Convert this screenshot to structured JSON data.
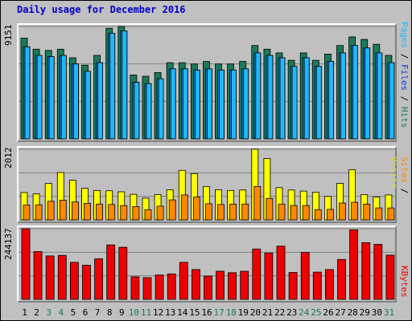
{
  "title": "Daily usage for December 2016",
  "colors": {
    "hits": "#1a7a5a",
    "files": "#0b8ae0",
    "pages": "#1fb8ff",
    "visits": "#ffff00",
    "sites": "#ff8800",
    "kbytes": "#ee0000",
    "weekend_label": "#1a7a5a",
    "weekday_label": "#000000"
  },
  "right_labels": {
    "pages": "Pages",
    "files": "Files",
    "hits": "Hits",
    "sites": "Sites",
    "visits": "Visits",
    "kbytes": "KBytes",
    "sep": " / "
  },
  "y_max_labels": {
    "hits": "9151",
    "visits": "2012",
    "kbytes": "244137"
  },
  "chart_data": {
    "type": "bar",
    "title": "Daily usage for December 2016",
    "categories": [
      "1",
      "2",
      "3",
      "4",
      "5",
      "6",
      "7",
      "8",
      "9",
      "10",
      "11",
      "12",
      "13",
      "14",
      "15",
      "16",
      "17",
      "18",
      "19",
      "20",
      "21",
      "22",
      "23",
      "24",
      "25",
      "26",
      "27",
      "28",
      "29",
      "30",
      "31"
    ],
    "weekend_days": [
      "3",
      "4",
      "10",
      "11",
      "17",
      "18",
      "24",
      "25",
      "31"
    ],
    "panels": [
      {
        "name": "hits_files_pages",
        "ymax": 9151,
        "series": [
          {
            "name": "Hits",
            "values": [
              8200,
              7300,
              7200,
              7300,
              6600,
              6000,
              6800,
              9000,
              9151,
              5200,
              5100,
              5400,
              6200,
              6200,
              6100,
              6300,
              6100,
              6100,
              6300,
              7600,
              7300,
              7000,
              6400,
              7000,
              6400,
              6900,
              7600,
              8300,
              8100,
              7700,
              6800
            ]
          },
          {
            "name": "Files",
            "values": [
              7500,
              6800,
              6700,
              6800,
              6100,
              5500,
              6200,
              8600,
              8800,
              4600,
              4500,
              4900,
              5700,
              5700,
              5600,
              5700,
              5600,
              5600,
              5700,
              7000,
              6800,
              6600,
              5900,
              6600,
              5900,
              6300,
              7000,
              7600,
              7400,
              7000,
              6200
            ]
          },
          {
            "name": "Pages",
            "values": [
              7500,
              6800,
              6700,
              6800,
              6100,
              5500,
              6200,
              8600,
              8800,
              4600,
              4500,
              4900,
              5700,
              5700,
              5600,
              5700,
              5600,
              5600,
              5700,
              7000,
              6800,
              6600,
              5900,
              6600,
              5900,
              6300,
              7000,
              7600,
              7400,
              7000,
              6200
            ]
          }
        ]
      },
      {
        "name": "visits_sites",
        "ymax": 2012,
        "series": [
          {
            "name": "Visits",
            "values": [
              780,
              740,
              1040,
              1350,
              1130,
              900,
              840,
              830,
              800,
              730,
              620,
              720,
              860,
              1410,
              1320,
              950,
              860,
              840,
              850,
              2012,
              1750,
              920,
              850,
              820,
              790,
              670,
              1040,
              1430,
              720,
              650,
              710
            ]
          },
          {
            "name": "Sites",
            "values": [
              420,
              430,
              530,
              560,
              510,
              470,
              450,
              440,
              410,
              380,
              290,
              390,
              570,
              710,
              650,
              460,
              440,
              450,
              450,
              950,
              610,
              450,
              410,
              410,
              290,
              300,
              480,
              500,
              450,
              340,
              340
            ]
          }
        ]
      },
      {
        "name": "kbytes",
        "ymax": 244137,
        "series": [
          {
            "name": "KBytes",
            "values": [
              244137,
              165000,
              150000,
              152000,
              128000,
              118000,
              140000,
              188000,
              180000,
              78000,
              75000,
              84000,
              88000,
              128000,
              103000,
              80000,
              97000,
              92000,
              97000,
              174000,
              160000,
              184000,
              93000,
              162000,
              94000,
              103000,
              138000,
              240000,
              196000,
              190000,
              153000
            ]
          }
        ]
      }
    ]
  }
}
